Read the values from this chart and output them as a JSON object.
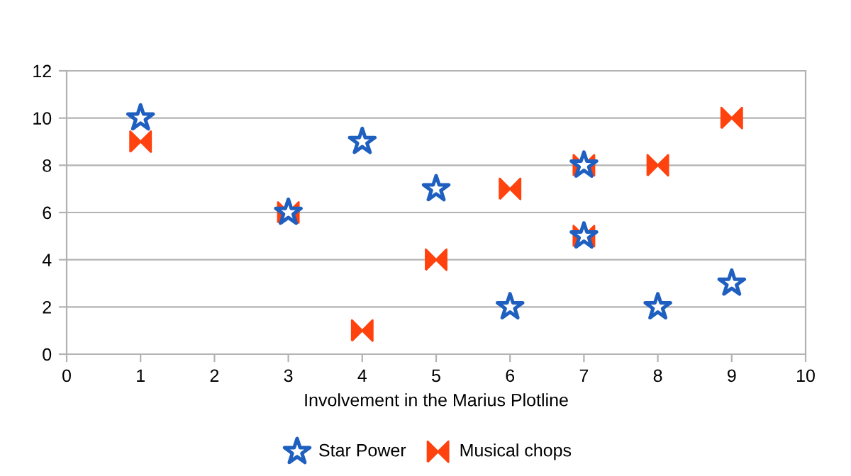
{
  "chart_data": {
    "type": "scatter",
    "xlabel": "Involvement in the Marius Plotline",
    "series": [
      {
        "name": "Star Power",
        "color": "#1f5fbf",
        "marker": "star",
        "x": [
          1,
          3,
          4,
          5,
          6,
          7,
          7,
          8,
          9
        ],
        "values": [
          10,
          6,
          9,
          7,
          2,
          8,
          5,
          2,
          3
        ]
      },
      {
        "name": "Musical chops",
        "color": "#ff420e",
        "x": [
          1,
          3,
          4,
          5,
          6,
          7,
          7,
          8,
          9
        ],
        "values": [
          9,
          6,
          1,
          4,
          7,
          8,
          5,
          8,
          10
        ]
      }
    ],
    "xlim": [
      0,
      10
    ],
    "xticks": [
      0,
      1,
      2,
      3,
      4,
      5,
      6,
      7,
      8,
      9,
      10
    ],
    "ylim": [
      0,
      12
    ],
    "yticks": [
      0,
      2,
      4,
      6,
      8,
      10,
      12
    ],
    "grid": "y",
    "legend": "bottom"
  }
}
